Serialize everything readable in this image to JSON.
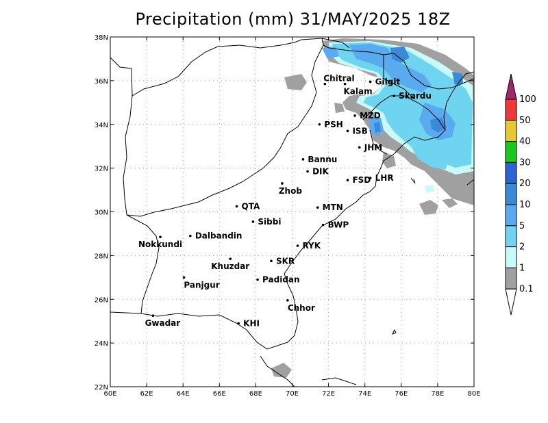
{
  "title": "Precipitation (mm) 31/MAY/2025 18Z",
  "map": {
    "lon_range": [
      60,
      80
    ],
    "lat_range": [
      22,
      38
    ],
    "x_ticks": [
      {
        "value": 60,
        "label": "60E"
      },
      {
        "value": 62,
        "label": "62E"
      },
      {
        "value": 64,
        "label": "64E"
      },
      {
        "value": 66,
        "label": "66E"
      },
      {
        "value": 68,
        "label": "68E"
      },
      {
        "value": 70,
        "label": "70E"
      },
      {
        "value": 72,
        "label": "72E"
      },
      {
        "value": 74,
        "label": "74E"
      },
      {
        "value": 76,
        "label": "76E"
      },
      {
        "value": 78,
        "label": "78E"
      },
      {
        "value": 80,
        "label": "80E"
      }
    ],
    "y_ticks": [
      {
        "value": 22,
        "label": "22N"
      },
      {
        "value": 24,
        "label": "24N"
      },
      {
        "value": 26,
        "label": "26N"
      },
      {
        "value": 28,
        "label": "28N"
      },
      {
        "value": 30,
        "label": "30N"
      },
      {
        "value": 32,
        "label": "32N"
      },
      {
        "value": 34,
        "label": "34N"
      },
      {
        "value": 36,
        "label": "36N"
      },
      {
        "value": 38,
        "label": "38N"
      }
    ],
    "grid": true
  },
  "cities": [
    {
      "name": "Chitral",
      "lon": 71.8,
      "lat": 35.85,
      "label_pos": "above"
    },
    {
      "name": "Kalam",
      "lon": 72.9,
      "lat": 35.85,
      "label_pos": "below"
    },
    {
      "name": "Gilgit",
      "lon": 74.3,
      "lat": 35.95,
      "label_pos": "right"
    },
    {
      "name": "Skardu",
      "lon": 75.6,
      "lat": 35.3,
      "label_pos": "right"
    },
    {
      "name": "MZD",
      "lon": 73.45,
      "lat": 34.4,
      "label_pos": "right"
    },
    {
      "name": "PSH",
      "lon": 71.5,
      "lat": 34.0,
      "label_pos": "right"
    },
    {
      "name": "ISB",
      "lon": 73.05,
      "lat": 33.7,
      "label_pos": "right"
    },
    {
      "name": "JHM",
      "lon": 73.7,
      "lat": 32.95,
      "label_pos": "right"
    },
    {
      "name": "Bannu",
      "lon": 70.6,
      "lat": 32.4,
      "label_pos": "right"
    },
    {
      "name": "DIK",
      "lon": 70.85,
      "lat": 31.85,
      "label_pos": "right"
    },
    {
      "name": "FSD",
      "lon": 73.05,
      "lat": 31.45,
      "label_pos": "right"
    },
    {
      "name": "LHR",
      "lon": 74.3,
      "lat": 31.55,
      "label_pos": "right"
    },
    {
      "name": "Zhob",
      "lon": 69.45,
      "lat": 31.3,
      "label_pos": "below"
    },
    {
      "name": "QTA",
      "lon": 66.95,
      "lat": 30.25,
      "label_pos": "right"
    },
    {
      "name": "MTN",
      "lon": 71.4,
      "lat": 30.2,
      "label_pos": "right"
    },
    {
      "name": "Sibbi",
      "lon": 67.85,
      "lat": 29.55,
      "label_pos": "right"
    },
    {
      "name": "BWP",
      "lon": 71.7,
      "lat": 29.4,
      "label_pos": "right"
    },
    {
      "name": "Dalbandin",
      "lon": 64.4,
      "lat": 28.9,
      "label_pos": "right"
    },
    {
      "name": "Nokkundi",
      "lon": 62.75,
      "lat": 28.85,
      "label_pos": "below"
    },
    {
      "name": "RYK",
      "lon": 70.3,
      "lat": 28.45,
      "label_pos": "right"
    },
    {
      "name": "Khuzdar",
      "lon": 66.6,
      "lat": 27.85,
      "label_pos": "below"
    },
    {
      "name": "SKR",
      "lon": 68.85,
      "lat": 27.75,
      "label_pos": "right"
    },
    {
      "name": "Panjgur",
      "lon": 64.05,
      "lat": 27.0,
      "label_pos": "below"
    },
    {
      "name": "Padidan",
      "lon": 68.1,
      "lat": 26.9,
      "label_pos": "right"
    },
    {
      "name": "Chhor",
      "lon": 69.75,
      "lat": 25.95,
      "label_pos": "below"
    },
    {
      "name": "Gwadar",
      "lon": 62.35,
      "lat": 25.25,
      "label_pos": "below"
    },
    {
      "name": "KHI",
      "lon": 67.05,
      "lat": 24.9,
      "label_pos": "right"
    }
  ],
  "colorbar": {
    "bins": [
      {
        "label": "100",
        "color": "#a0286e"
      },
      {
        "label": "50",
        "color": "#ee3939"
      },
      {
        "label": "40",
        "color": "#e6c832"
      },
      {
        "label": "30",
        "color": "#19c81e"
      },
      {
        "label": "20",
        "color": "#2a63d3"
      },
      {
        "label": "10",
        "color": "#3a8ad8"
      },
      {
        "label": "5",
        "color": "#5aaaf0"
      },
      {
        "label": "2",
        "color": "#6ed4f0"
      },
      {
        "label": "1",
        "color": "#c8fafa"
      },
      {
        "label": "0.1",
        "color": "#a0a0a0"
      }
    ],
    "bottom_color": "#ffffff"
  }
}
